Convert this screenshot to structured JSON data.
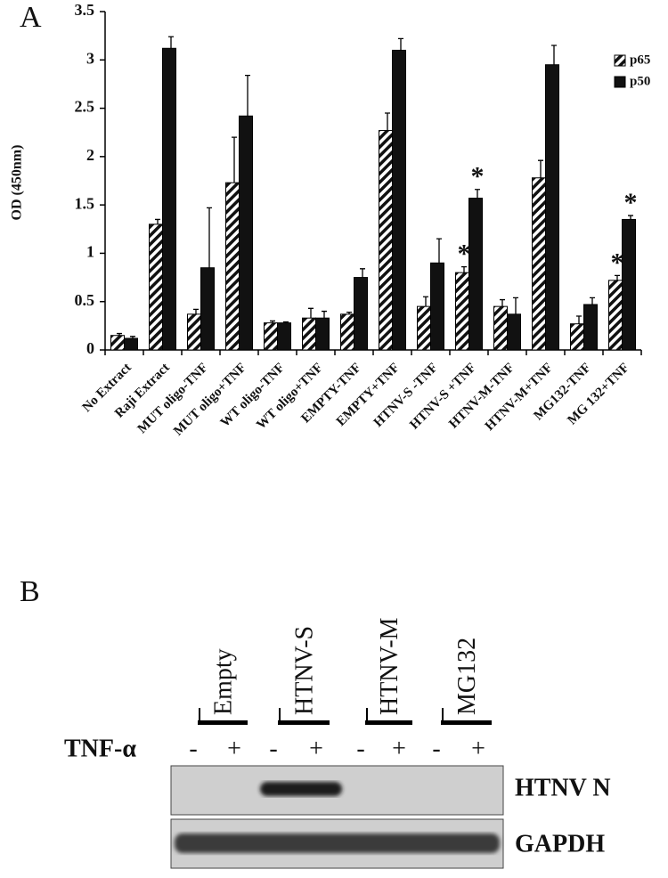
{
  "chart_data": {
    "type": "bar",
    "panel_label": "A",
    "y_label": "OD (450nm)",
    "categories": [
      "No Extract",
      "Raji Extract",
      "MUT oligo-TNF",
      "MUT oligo+TNF",
      "WT oligo-TNF",
      "WT oligo+TNF",
      "EMPTY-TNF",
      "EMPTY+TNF",
      "HTNV-S -TNF",
      "HTNV-S +TNF",
      "HTNV-M-TNF",
      "HTNV-M+TNF",
      "MG132-TNF",
      "MG 132+TNF"
    ],
    "series": [
      {
        "name": "p65",
        "color": "hatched",
        "values": [
          0.15,
          1.3,
          0.37,
          1.73,
          0.28,
          0.33,
          0.37,
          2.27,
          0.45,
          0.8,
          0.45,
          1.78,
          0.27,
          0.72
        ],
        "errors": [
          0.02,
          0.05,
          0.05,
          0.47,
          0.02,
          0.1,
          0.02,
          0.18,
          0.1,
          0.06,
          0.07,
          0.18,
          0.08,
          0.05
        ]
      },
      {
        "name": "p50",
        "color": "#111111",
        "values": [
          0.12,
          3.12,
          0.85,
          2.42,
          0.28,
          0.33,
          0.75,
          3.1,
          0.9,
          1.57,
          0.37,
          2.95,
          0.47,
          1.35
        ],
        "errors": [
          0.02,
          0.12,
          0.62,
          0.42,
          0.01,
          0.07,
          0.09,
          0.12,
          0.25,
          0.09,
          0.17,
          0.2,
          0.07,
          0.04
        ]
      }
    ],
    "annotations": [
      {
        "text": "*",
        "category": "HTNV-S +TNF",
        "series": "p65"
      },
      {
        "text": "*",
        "category": "HTNV-S +TNF",
        "series": "p50"
      },
      {
        "text": "*",
        "category": "MG 132+TNF",
        "series": "p65"
      },
      {
        "text": "*",
        "category": "MG 132+TNF",
        "series": "p50"
      }
    ],
    "ylim": [
      0,
      3.5
    ],
    "yticks": [
      0,
      0.5,
      1,
      1.5,
      2,
      2.5,
      3,
      3.5
    ],
    "grid": false,
    "legend": "top-right"
  },
  "blot": {
    "panel_label": "B",
    "groups": [
      "Empty",
      "HTNV-S",
      "HTNV-M",
      "MG132"
    ],
    "treatment_label": "TNF-α",
    "treatment_signs": [
      "-",
      "+",
      "-",
      "+",
      "-",
      "+",
      "-",
      "+"
    ],
    "rows": [
      "HTNV N",
      "GAPDH"
    ]
  }
}
